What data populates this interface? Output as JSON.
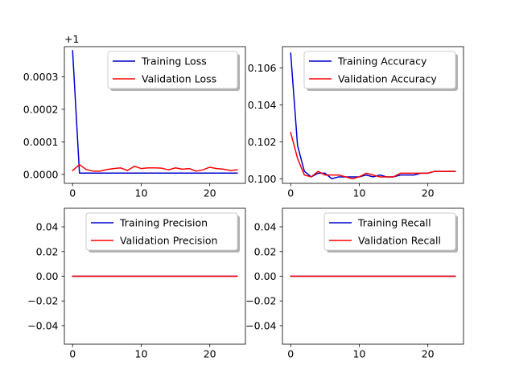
{
  "chart_data": [
    {
      "type": "line",
      "offset_label": "+1",
      "xlim": [
        -1.2,
        25.2
      ],
      "ylim": [
        -2.75e-05,
        0.0003925
      ],
      "xticks": [
        0,
        10,
        20
      ],
      "xtick_labels": [
        "0",
        "10",
        "20"
      ],
      "yticks": [
        0,
        0.0001,
        0.0002,
        0.0003
      ],
      "ytick_labels": [
        "0.0000",
        "0.0001",
        "0.0002",
        "0.0003"
      ],
      "legend_position": "upper-right",
      "x": [
        0,
        1,
        2,
        3,
        4,
        5,
        6,
        7,
        8,
        9,
        10,
        11,
        12,
        13,
        14,
        15,
        16,
        17,
        18,
        19,
        20,
        21,
        22,
        23,
        24
      ],
      "series": [
        {
          "name": "Training Loss",
          "color": "#0000cc",
          "values": [
            0.00038,
            4e-06,
            4e-06,
            4e-06,
            4e-06,
            4e-06,
            4e-06,
            4e-06,
            4e-06,
            4e-06,
            4e-06,
            4e-06,
            4e-06,
            4e-06,
            4e-06,
            4e-06,
            4e-06,
            4e-06,
            4e-06,
            4e-06,
            4e-06,
            4e-06,
            4e-06,
            4e-06,
            4e-06
          ]
        },
        {
          "name": "Validation Loss",
          "color": "#ff0000",
          "values": [
            1.2e-05,
            3e-05,
            1.5e-05,
            1e-05,
            1e-05,
            1.5e-05,
            1.8e-05,
            2e-05,
            1.2e-05,
            2.5e-05,
            1.8e-05,
            2e-05,
            2e-05,
            1.9e-05,
            1.4e-05,
            2e-05,
            1.6e-05,
            1.8e-05,
            1e-05,
            1.4e-05,
            2.2e-05,
            1.8e-05,
            1.6e-05,
            1.2e-05,
            1.4e-05
          ]
        }
      ]
    },
    {
      "type": "line",
      "xlim": [
        -1.2,
        25.2
      ],
      "ylim": [
        0.09975,
        0.10715
      ],
      "xticks": [
        0,
        10,
        20
      ],
      "xtick_labels": [
        "0",
        "10",
        "20"
      ],
      "yticks": [
        0.1,
        0.102,
        0.104,
        0.106
      ],
      "ytick_labels": [
        "0.100",
        "0.102",
        "0.104",
        "0.106"
      ],
      "legend_position": "upper-right",
      "x": [
        0,
        1,
        2,
        3,
        4,
        5,
        6,
        7,
        8,
        9,
        10,
        11,
        12,
        13,
        14,
        15,
        16,
        17,
        18,
        19,
        20,
        21,
        22,
        23,
        24
      ],
      "series": [
        {
          "name": "Training Accuracy",
          "color": "#0000cc",
          "values": [
            0.1068,
            0.1018,
            0.1004,
            0.1001,
            0.1003,
            0.1003,
            0.1,
            0.1001,
            0.1001,
            0.1001,
            0.1001,
            0.1002,
            0.1001,
            0.1002,
            0.1001,
            0.1001,
            0.1002,
            0.1002,
            0.1002,
            0.1003,
            0.1003,
            0.1004,
            0.1004,
            0.1004,
            0.1004
          ]
        },
        {
          "name": "Validation Accuracy",
          "color": "#ff0000",
          "values": [
            0.1025,
            0.1011,
            0.1002,
            0.1001,
            0.1004,
            0.1002,
            0.1002,
            0.1002,
            0.1001,
            0.1,
            0.1001,
            0.1003,
            0.1002,
            0.1001,
            0.1001,
            0.1001,
            0.1003,
            0.1003,
            0.1003,
            0.1003,
            0.1003,
            0.1004,
            0.1004,
            0.1004,
            0.1004
          ]
        }
      ]
    },
    {
      "type": "line",
      "xlim": [
        -1.2,
        25.2
      ],
      "ylim": [
        -0.055,
        0.055
      ],
      "xticks": [
        0,
        10,
        20
      ],
      "xtick_labels": [
        "0",
        "10",
        "20"
      ],
      "yticks": [
        -0.04,
        -0.02,
        0,
        0.02,
        0.04
      ],
      "ytick_labels": [
        "−0.04",
        "−0.02",
        "0.00",
        "0.02",
        "0.04"
      ],
      "legend_position": "upper-right",
      "x": [
        0,
        1,
        2,
        3,
        4,
        5,
        6,
        7,
        8,
        9,
        10,
        11,
        12,
        13,
        14,
        15,
        16,
        17,
        18,
        19,
        20,
        21,
        22,
        23,
        24
      ],
      "series": [
        {
          "name": "Training Precision",
          "color": "#0000cc",
          "values": [
            0,
            0,
            0,
            0,
            0,
            0,
            0,
            0,
            0,
            0,
            0,
            0,
            0,
            0,
            0,
            0,
            0,
            0,
            0,
            0,
            0,
            0,
            0,
            0,
            0
          ]
        },
        {
          "name": "Validation Precision",
          "color": "#ff0000",
          "values": [
            0,
            0,
            0,
            0,
            0,
            0,
            0,
            0,
            0,
            0,
            0,
            0,
            0,
            0,
            0,
            0,
            0,
            0,
            0,
            0,
            0,
            0,
            0,
            0,
            0
          ]
        }
      ]
    },
    {
      "type": "line",
      "xlim": [
        -1.2,
        25.2
      ],
      "ylim": [
        -0.055,
        0.055
      ],
      "xticks": [
        0,
        10,
        20
      ],
      "xtick_labels": [
        "0",
        "10",
        "20"
      ],
      "yticks": [
        -0.04,
        -0.02,
        0,
        0.02,
        0.04
      ],
      "ytick_labels": [
        "−0.04",
        "−0.02",
        "0.00",
        "0.02",
        "0.04"
      ],
      "legend_position": "upper-right",
      "x": [
        0,
        1,
        2,
        3,
        4,
        5,
        6,
        7,
        8,
        9,
        10,
        11,
        12,
        13,
        14,
        15,
        16,
        17,
        18,
        19,
        20,
        21,
        22,
        23,
        24
      ],
      "series": [
        {
          "name": "Training Recall",
          "color": "#0000cc",
          "values": [
            0,
            0,
            0,
            0,
            0,
            0,
            0,
            0,
            0,
            0,
            0,
            0,
            0,
            0,
            0,
            0,
            0,
            0,
            0,
            0,
            0,
            0,
            0,
            0,
            0
          ]
        },
        {
          "name": "Validation Recall",
          "color": "#ff0000",
          "values": [
            0,
            0,
            0,
            0,
            0,
            0,
            0,
            0,
            0,
            0,
            0,
            0,
            0,
            0,
            0,
            0,
            0,
            0,
            0,
            0,
            0,
            0,
            0,
            0,
            0
          ]
        }
      ]
    }
  ]
}
